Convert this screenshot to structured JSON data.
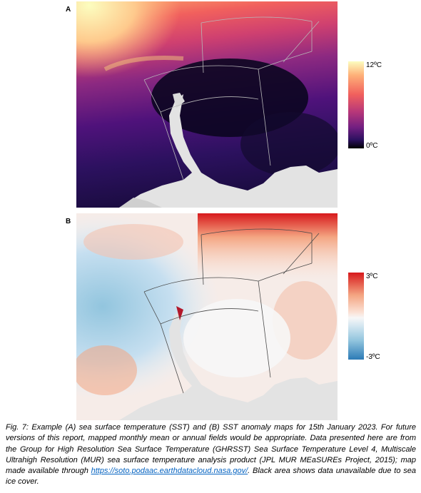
{
  "panels": {
    "a": {
      "letter": "A",
      "colorbar": {
        "max": "12ºC",
        "min": "0ºC",
        "colors": [
          "#fcfdbf",
          "#feb078",
          "#f1605d",
          "#b73779",
          "#721f81",
          "#2c115f",
          "#000004"
        ]
      }
    },
    "b": {
      "letter": "B",
      "colorbar": {
        "max": "3ºC",
        "min": "-3ºC",
        "colors": [
          "#d7191c",
          "#f4a582",
          "#f7f7f7",
          "#92c5de",
          "#2c7bb6"
        ]
      }
    }
  },
  "caption": {
    "pre": "Fig. 7: Example (A) sea surface temperature (SST) and (B) SST anomaly maps for 15th January 2023. For future versions of this report, mapped monthly mean or annual fields would be appropriate. Data presented here are from the Group for High Resolution Sea Surface Temperature (GHRSST) Sea Surface Temperature Level 4, Multiscale Ultrahigh Resolution (MUR) sea surface temperature analysis product (JPL MUR MEaSUREs Project, 2015); map made available through ",
    "link": "https://soto.podaac.earthdatacloud.nasa.gov/",
    "post": ". Black area shows data unavailable due to sea ice cover."
  }
}
